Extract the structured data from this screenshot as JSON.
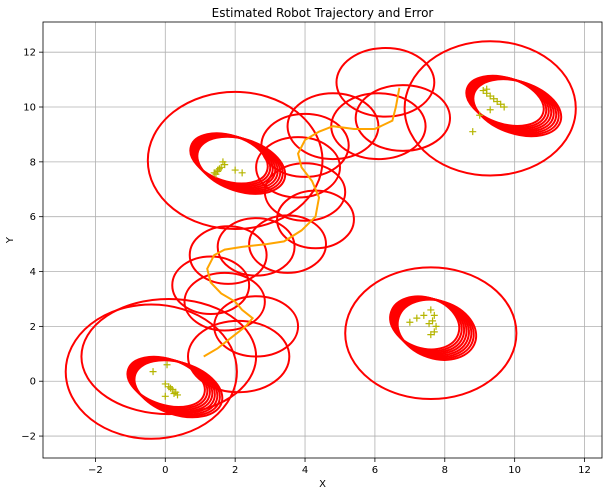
{
  "chart_data": {
    "type": "scatter",
    "title": "Estimated Robot Trajectory and Error",
    "xlabel": "X",
    "ylabel": "Y",
    "xlim": [
      -3.5,
      12.5
    ],
    "ylim": [
      -2.8,
      13.1
    ],
    "xticks": [
      -2,
      0,
      2,
      4,
      6,
      8,
      10,
      12
    ],
    "yticks": [
      -2,
      0,
      2,
      4,
      6,
      8,
      10,
      12
    ],
    "grid": true,
    "colors": {
      "ellipse": "#ff0000",
      "trajectory": "#ffa500",
      "landmarks": "#b5b500"
    },
    "trajectory": {
      "x": [
        1.1,
        1.5,
        1.9,
        2.3,
        2.5,
        2.2,
        2.0,
        1.6,
        1.3,
        1.2,
        1.4,
        1.7,
        2.2,
        2.9,
        3.4,
        3.9,
        4.3,
        4.4,
        4.2,
        3.9,
        3.8,
        4.0,
        4.4,
        4.8,
        5.4,
        6.0,
        6.5,
        6.6,
        6.7
      ],
      "y": [
        0.9,
        1.2,
        1.6,
        2.0,
        2.3,
        2.6,
        2.9,
        3.2,
        3.6,
        4.1,
        4.6,
        4.8,
        4.9,
        5.0,
        5.1,
        5.5,
        6.0,
        6.7,
        7.3,
        7.8,
        8.3,
        8.8,
        9.1,
        9.3,
        9.2,
        9.2,
        9.5,
        10.0,
        10.7
      ]
    },
    "uncertainty_ellipses": [
      {
        "cx": 2.1,
        "cy": 0.9,
        "rx": 1.45,
        "ry": 1.3
      },
      {
        "cx": 2.6,
        "cy": 2.0,
        "rx": 1.2,
        "ry": 1.1
      },
      {
        "cx": 1.7,
        "cy": 2.9,
        "rx": 1.15,
        "ry": 1.05
      },
      {
        "cx": 1.3,
        "cy": 3.5,
        "rx": 1.1,
        "ry": 1.05
      },
      {
        "cx": 1.8,
        "cy": 4.6,
        "rx": 1.1,
        "ry": 1.05
      },
      {
        "cx": 2.6,
        "cy": 4.9,
        "rx": 1.1,
        "ry": 1.05
      },
      {
        "cx": 3.5,
        "cy": 5.0,
        "rx": 1.1,
        "ry": 1.05
      },
      {
        "cx": 4.3,
        "cy": 5.9,
        "rx": 1.1,
        "ry": 1.05
      },
      {
        "cx": 4.0,
        "cy": 6.9,
        "rx": 1.15,
        "ry": 1.05
      },
      {
        "cx": 3.8,
        "cy": 7.8,
        "rx": 1.2,
        "ry": 1.1
      },
      {
        "cx": 4.0,
        "cy": 8.6,
        "rx": 1.25,
        "ry": 1.15
      },
      {
        "cx": 4.8,
        "cy": 9.3,
        "rx": 1.3,
        "ry": 1.2
      },
      {
        "cx": 6.1,
        "cy": 9.3,
        "rx": 1.35,
        "ry": 1.2
      },
      {
        "cx": 6.8,
        "cy": 9.6,
        "rx": 1.35,
        "ry": 1.2
      },
      {
        "cx": 6.3,
        "cy": 10.9,
        "rx": 1.4,
        "ry": 1.25
      },
      {
        "cx": 0.1,
        "cy": 0.9,
        "rx": 2.5,
        "ry": 2.1
      },
      {
        "cx": -0.4,
        "cy": 0.35,
        "rx": 2.45,
        "ry": 2.45
      },
      {
        "cx": 2.0,
        "cy": 8.05,
        "rx": 2.5,
        "ry": 2.5
      },
      {
        "cx": 9.3,
        "cy": 9.95,
        "rx": 2.45,
        "ry": 2.45
      },
      {
        "cx": 7.6,
        "cy": 1.75,
        "rx": 2.45,
        "ry": 2.4
      }
    ],
    "landmark_ellipse_clusters": [
      {
        "cx": 0.2,
        "cy": -0.15,
        "rx": 1.3,
        "ry": 0.95,
        "angle": 18,
        "count": 8
      },
      {
        "cx": 2.0,
        "cy": 8.0,
        "rx": 1.3,
        "ry": 0.95,
        "angle": 18,
        "count": 8
      },
      {
        "cx": 9.9,
        "cy": 10.1,
        "rx": 1.3,
        "ry": 0.95,
        "angle": 18,
        "count": 8
      },
      {
        "cx": 7.6,
        "cy": 2.0,
        "rx": 1.15,
        "ry": 1.05,
        "angle": 18,
        "count": 8
      }
    ],
    "landmark_estimates": [
      {
        "x": [
          0.0,
          0.1,
          0.2,
          0.3,
          0.35,
          0.15,
          0.25,
          -0.35,
          0.05,
          0.0
        ],
        "y": [
          -0.1,
          -0.2,
          -0.3,
          -0.4,
          -0.5,
          -0.25,
          -0.45,
          0.35,
          0.6,
          -0.55
        ]
      },
      {
        "x": [
          1.4,
          1.5,
          1.6,
          1.7,
          1.55,
          1.65,
          2.0,
          2.2,
          1.5,
          1.45
        ],
        "y": [
          7.6,
          7.7,
          7.8,
          7.9,
          7.75,
          8.0,
          7.7,
          7.6,
          7.65,
          7.55
        ]
      },
      {
        "x": [
          9.1,
          9.2,
          9.3,
          9.4,
          9.5,
          9.6,
          9.7,
          9.3,
          9.0,
          8.8,
          9.2
        ],
        "y": [
          10.6,
          10.5,
          10.4,
          10.3,
          10.2,
          10.1,
          10.0,
          9.9,
          9.7,
          9.1,
          10.65
        ]
      },
      {
        "x": [
          7.6,
          7.7,
          7.65,
          7.75,
          7.7,
          7.4,
          7.2,
          7.0,
          7.6,
          7.55
        ],
        "y": [
          2.6,
          2.4,
          2.2,
          2.0,
          1.8,
          2.4,
          2.3,
          2.15,
          1.7,
          2.1
        ]
      }
    ]
  }
}
